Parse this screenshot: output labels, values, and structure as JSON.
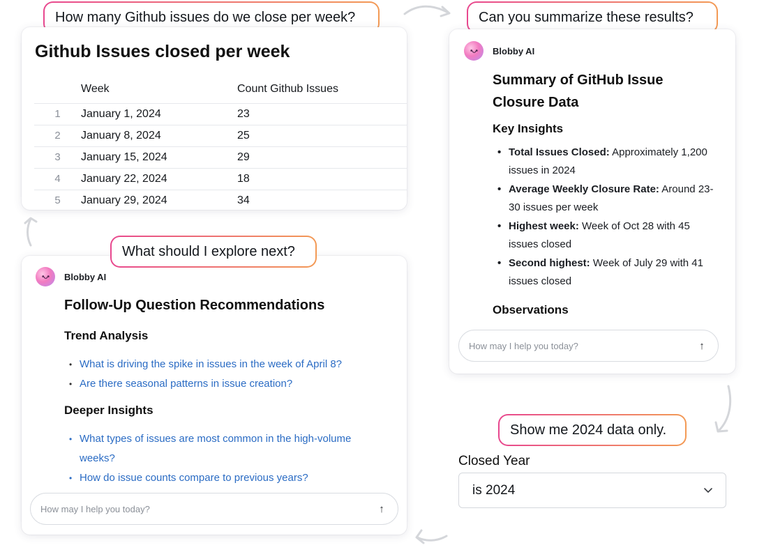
{
  "colors": {
    "bubble_gradient_start": "#e8488f",
    "bubble_gradient_end": "#f39a55",
    "link": "#2b6cc4"
  },
  "prompts": {
    "q1": "How many Github issues do we close per week?",
    "q2": "Can you summarize these results?",
    "q3": "What should I explore next?",
    "q4": "Show me 2024 data only."
  },
  "table": {
    "title": "Github Issues closed per week",
    "columns": [
      "",
      "Week",
      "Count Github Issues"
    ],
    "rows": [
      {
        "index": "1",
        "week": "January 1, 2024",
        "count": "23"
      },
      {
        "index": "2",
        "week": "January 8, 2024",
        "count": "25"
      },
      {
        "index": "3",
        "week": "January 15, 2024",
        "count": "29"
      },
      {
        "index": "4",
        "week": "January 22, 2024",
        "count": "18"
      },
      {
        "index": "5",
        "week": "January 29, 2024",
        "count": "34"
      }
    ]
  },
  "summary": {
    "assistant_name": "Blobby AI",
    "avatar_icon": "blob-face-icon",
    "title": "Summary of GitHub Issue Closure Data",
    "key_insights_heading": "Key Insights",
    "insights": [
      {
        "label": "Total Issues Closed:",
        "text": " Approximately 1,200 issues in 2024"
      },
      {
        "label": "Average Weekly Closure Rate:",
        "text": " Around 23-30 issues per week"
      },
      {
        "label": "Highest week:",
        "text": " Week of Oct 28 with 45 issues closed"
      },
      {
        "label": "Second highest:",
        "text": " Week of July 29 with 41 issues closed"
      }
    ],
    "observations_heading": "Observations",
    "input_placeholder": "How may I help you today?",
    "send_icon": "arrow-up-icon"
  },
  "followup": {
    "assistant_name": "Blobby AI",
    "title": "Follow-Up Question Recommendations",
    "trend_heading": "Trend Analysis",
    "trend_links": [
      "What is driving the spike in issues in the week of April 8?",
      "Are there seasonal patterns in issue creation?"
    ],
    "deeper_heading": "Deeper Insights",
    "deeper_links": [
      "What types of issues are most common in the high-volume weeks?",
      "How do issue counts compare to previous years?"
    ],
    "input_placeholder": "How may I help you today?"
  },
  "filter": {
    "label": "Closed Year",
    "value": "is 2024",
    "icon": "chevron-down-icon"
  }
}
